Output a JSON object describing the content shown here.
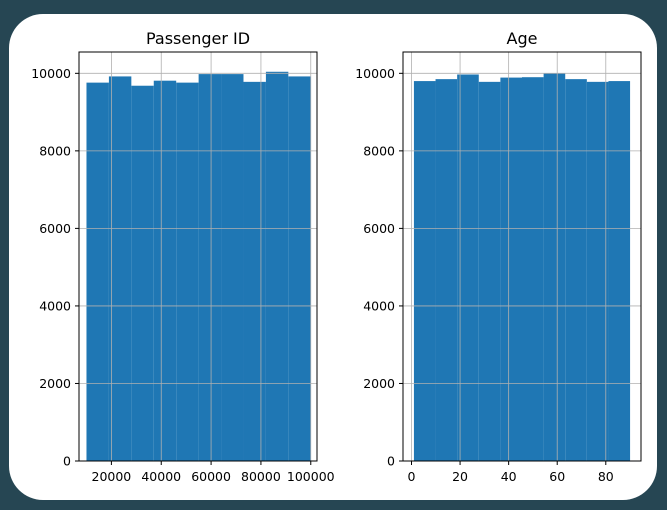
{
  "colors": {
    "background": "#264653",
    "card": "#ffffff",
    "bar": "#1f77b4",
    "grid": "#b0b0b0"
  },
  "chart_data": [
    {
      "type": "bar",
      "title": "Passenger ID",
      "xlabel": "",
      "ylabel": "",
      "grid": true,
      "bin_edges": [
        10000,
        19000,
        28000,
        37000,
        46000,
        55000,
        64000,
        73000,
        82000,
        91000,
        100000
      ],
      "values": [
        9760,
        9920,
        9680,
        9810,
        9760,
        9980,
        9980,
        9780,
        10040,
        9920
      ],
      "xlim": [
        7000,
        102500
      ],
      "ylim": [
        0,
        10550
      ],
      "xticks": [
        20000,
        40000,
        60000,
        80000,
        100000
      ],
      "xtick_labels": [
        "20000",
        "40000",
        "60000",
        "80000",
        "100000"
      ],
      "yticks": [
        0,
        2000,
        4000,
        6000,
        8000,
        10000
      ],
      "ytick_labels": [
        "0",
        "2000",
        "4000",
        "6000",
        "8000",
        "10000"
      ]
    },
    {
      "type": "bar",
      "title": "Age",
      "xlabel": "",
      "ylabel": "",
      "grid": true,
      "bin_edges": [
        1,
        9.9,
        18.8,
        27.7,
        36.6,
        45.5,
        54.4,
        63.3,
        72.2,
        81.1,
        90
      ],
      "values": [
        9800,
        9850,
        9970,
        9780,
        9890,
        9900,
        10000,
        9850,
        9780,
        9800
      ],
      "xlim": [
        -3.5,
        94.5
      ],
      "ylim": [
        0,
        10550
      ],
      "xticks": [
        0,
        20,
        40,
        60,
        80
      ],
      "xtick_labels": [
        "0",
        "20",
        "40",
        "60",
        "80"
      ],
      "yticks": [
        0,
        2000,
        4000,
        6000,
        8000,
        10000
      ],
      "ytick_labels": [
        "0",
        "2000",
        "4000",
        "6000",
        "8000",
        "10000"
      ]
    }
  ]
}
